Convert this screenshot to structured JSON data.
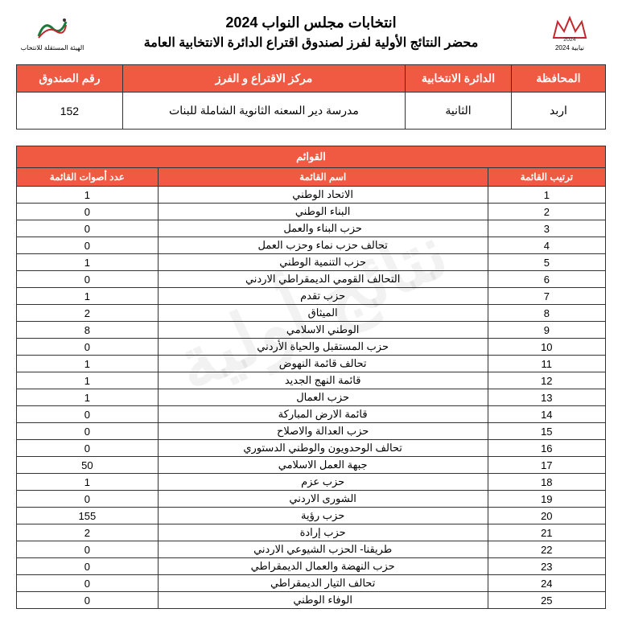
{
  "watermark_text": "نتائج أولية",
  "header": {
    "title1": "انتخابات مجلس النواب 2024",
    "title2": "محضر النتائج الأولية لفرز لصندوق اقتراع الدائرة الانتخابية العامة",
    "logo_right_text": "نيابية 2024",
    "logo_left_text": "الهيئة المستقلة للانتخاب"
  },
  "info": {
    "headers": {
      "governorate": "المحافظة",
      "district": "الدائرة الانتخابية",
      "center": "مركز الاقتراع و الفرز",
      "box": "رقم الصندوق"
    },
    "values": {
      "governorate": "اربد",
      "district": "الثانية",
      "center": "مدرسة دير السعنه الثانوية الشاملة للبنات",
      "box": "152"
    }
  },
  "lists": {
    "title": "القوائم",
    "headers": {
      "rank": "ترتيب القائمة",
      "name": "اسم القائمة",
      "votes": "عدد أصوات القائمة"
    },
    "rows": [
      {
        "rank": "1",
        "name": "الاتحاد الوطني",
        "votes": "1"
      },
      {
        "rank": "2",
        "name": "البناء الوطني",
        "votes": "0"
      },
      {
        "rank": "3",
        "name": "حزب البناء والعمل",
        "votes": "0"
      },
      {
        "rank": "4",
        "name": "تحالف حزب نماء وحزب العمل",
        "votes": "0"
      },
      {
        "rank": "5",
        "name": "حزب التنمية الوطني",
        "votes": "1"
      },
      {
        "rank": "6",
        "name": "التحالف القومي الديمقراطي الاردني",
        "votes": "0"
      },
      {
        "rank": "7",
        "name": "حزب تقدم",
        "votes": "1"
      },
      {
        "rank": "8",
        "name": "الميثاق",
        "votes": "2"
      },
      {
        "rank": "9",
        "name": "الوطني الاسلامي",
        "votes": "8"
      },
      {
        "rank": "10",
        "name": "حزب المستقبل والحياة الأردني",
        "votes": "0"
      },
      {
        "rank": "11",
        "name": "تحالف قائمة النهوض",
        "votes": "1"
      },
      {
        "rank": "12",
        "name": "قائمة النهج الجديد",
        "votes": "1"
      },
      {
        "rank": "13",
        "name": "حزب العمال",
        "votes": "1"
      },
      {
        "rank": "14",
        "name": "قائمة الارض المباركة",
        "votes": "0"
      },
      {
        "rank": "15",
        "name": "حزب العدالة والاصلاح",
        "votes": "0"
      },
      {
        "rank": "16",
        "name": "تحالف الوحدويون والوطني الدستوري",
        "votes": "0"
      },
      {
        "rank": "17",
        "name": "جبهة العمل الاسلامي",
        "votes": "50"
      },
      {
        "rank": "18",
        "name": "حزب عزم",
        "votes": "1"
      },
      {
        "rank": "19",
        "name": "الشورى الاردني",
        "votes": "0"
      },
      {
        "rank": "20",
        "name": "حزب رؤية",
        "votes": "155"
      },
      {
        "rank": "21",
        "name": "حزب إرادة",
        "votes": "2"
      },
      {
        "rank": "22",
        "name": "طريقنا- الحزب الشيوعي الاردني",
        "votes": "0"
      },
      {
        "rank": "23",
        "name": "حزب النهضة والعمال الديمقراطي",
        "votes": "0"
      },
      {
        "rank": "24",
        "name": "تحالف التيار الديمقراطي",
        "votes": "0"
      },
      {
        "rank": "25",
        "name": "الوفاء الوطني",
        "votes": "0"
      }
    ]
  },
  "colors": {
    "header_bg": "#f15a42",
    "header_fg": "#ffffff",
    "border": "#333333"
  }
}
